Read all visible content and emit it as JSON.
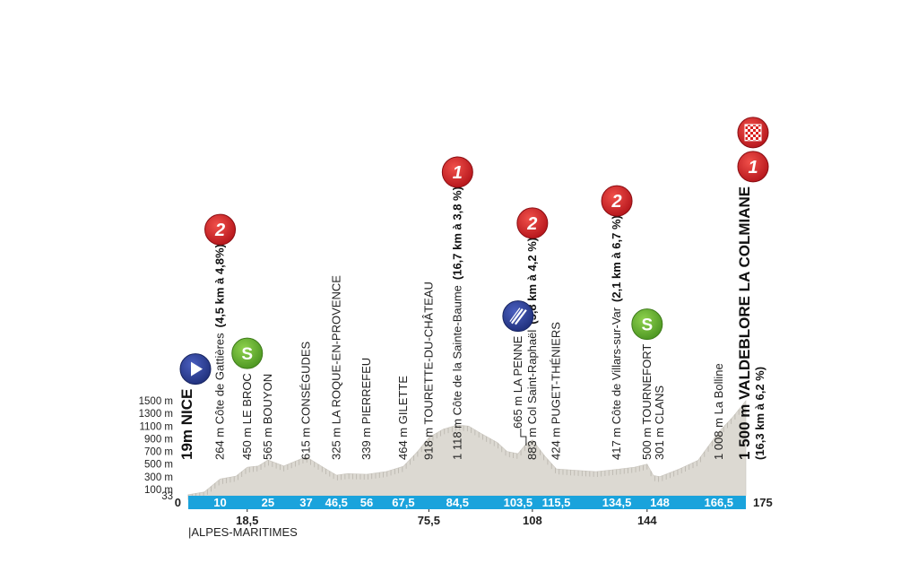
{
  "profile": {
    "total_km": 175,
    "max_alt": 1500,
    "altitude_axis": [
      "1500 m",
      "1300 m",
      "1100 m",
      "900 m",
      "700 m",
      "500 m",
      "300 m",
      "100 m",
      "33"
    ],
    "altitude_values": [
      1500,
      1300,
      1100,
      900,
      700,
      500,
      300,
      100,
      33
    ],
    "zero_label": "0",
    "end_label": "175",
    "department": "|ALPES-MARITIMES",
    "band_color": "#1aa3dc",
    "area_color": "#dcd9d2",
    "elevation": [
      [
        0,
        19
      ],
      [
        5,
        60
      ],
      [
        10,
        264
      ],
      [
        15,
        310
      ],
      [
        18.5,
        450
      ],
      [
        22,
        470
      ],
      [
        25,
        565
      ],
      [
        30,
        470
      ],
      [
        37,
        615
      ],
      [
        42,
        460
      ],
      [
        46.5,
        325
      ],
      [
        50,
        350
      ],
      [
        56,
        339
      ],
      [
        62,
        380
      ],
      [
        67.5,
        464
      ],
      [
        72,
        700
      ],
      [
        75.5,
        918
      ],
      [
        80,
        1050
      ],
      [
        84.5,
        1118
      ],
      [
        88,
        1100
      ],
      [
        92,
        980
      ],
      [
        97,
        840
      ],
      [
        100,
        700
      ],
      [
        103.5,
        665
      ],
      [
        106,
        820
      ],
      [
        108,
        883
      ],
      [
        112,
        620
      ],
      [
        115.5,
        424
      ],
      [
        122,
        400
      ],
      [
        128,
        380
      ],
      [
        134.5,
        417
      ],
      [
        140,
        450
      ],
      [
        144,
        500
      ],
      [
        146,
        320
      ],
      [
        148,
        301
      ],
      [
        154,
        420
      ],
      [
        160,
        560
      ],
      [
        166.5,
        1008
      ],
      [
        171,
        1250
      ],
      [
        175,
        1500
      ]
    ]
  },
  "km_ticks": [
    {
      "km": 10,
      "label": "10",
      "row": "band"
    },
    {
      "km": 25,
      "label": "25",
      "row": "band"
    },
    {
      "km": 37,
      "label": "37",
      "row": "band"
    },
    {
      "km": 46.5,
      "label": "46,5",
      "row": "band"
    },
    {
      "km": 56,
      "label": "56",
      "row": "band"
    },
    {
      "km": 67.5,
      "label": "67,5",
      "row": "band"
    },
    {
      "km": 84.5,
      "label": "84,5",
      "row": "band"
    },
    {
      "km": 103.5,
      "label": "103,5",
      "row": "band"
    },
    {
      "km": 115.5,
      "label": "115,5",
      "row": "band"
    },
    {
      "km": 134.5,
      "label": "134,5",
      "row": "band"
    },
    {
      "km": 148,
      "label": "148",
      "row": "band"
    },
    {
      "km": 166.5,
      "label": "166,5",
      "row": "band"
    },
    {
      "km": 18.5,
      "label": "18,5",
      "row": "below"
    },
    {
      "km": 75.5,
      "label": "75,5",
      "row": "below"
    },
    {
      "km": 108,
      "label": "108",
      "row": "below"
    },
    {
      "km": 144,
      "label": "144",
      "row": "below"
    }
  ],
  "waypoints": [
    {
      "km": 0,
      "alt": "19m",
      "name": "NICE",
      "big": true,
      "icon": "start"
    },
    {
      "km": 10,
      "alt": "264 m",
      "name": "Côte de Gattières",
      "climb": "(4,5 km à 4,8%)",
      "icon": "cat2"
    },
    {
      "km": 18.5,
      "alt": "450 m",
      "name": "LE BROC",
      "icon": "sprint"
    },
    {
      "km": 25,
      "alt": "565 m",
      "name": "BOUYON"
    },
    {
      "km": 37,
      "alt": "615 m",
      "name": "CONSÉGUDES"
    },
    {
      "km": 46.5,
      "alt": "325 m",
      "name": "LA ROQUE-EN-PROVENCE"
    },
    {
      "km": 56,
      "alt": "339 m",
      "name": "PIERREFEU"
    },
    {
      "km": 67.5,
      "alt": "464 m",
      "name": "GILETTE"
    },
    {
      "km": 75.5,
      "alt": "918 m",
      "name": "TOURETTE-DU-CHÂTEAU"
    },
    {
      "km": 84.5,
      "alt": "1 118 m",
      "name": "Côte de la Sainte-Baume",
      "climb": "(16,7 km à 3,8 %)",
      "icon": "cat1"
    },
    {
      "km": 103.5,
      "alt": "665 m",
      "name": "LA PENNE",
      "icon": "feed",
      "leader": true
    },
    {
      "km": 108,
      "alt": "883 m",
      "name": "Col Saint-Raphaël",
      "climb": "(5,8 km à 4,2 %)",
      "icon": "cat2"
    },
    {
      "km": 115.5,
      "alt": "424 m",
      "name": "PUGET-THÉNIERS"
    },
    {
      "km": 134.5,
      "alt": "417 m",
      "name": "Côte de Villars-sur-Var",
      "climb": "(2,1 km à 6,7 %)",
      "icon": "cat2"
    },
    {
      "km": 144,
      "alt": "500 m",
      "name": "TOURNEFORT",
      "icon": "sprint"
    },
    {
      "km": 148,
      "alt": "301 m",
      "name": "CLANS"
    },
    {
      "km": 166.5,
      "alt": "1 008 m",
      "name": "La Bolline"
    },
    {
      "km": 175,
      "alt": "1 500 m",
      "name": "VALDEBLORE LA COLMIANE",
      "climb": "(16,3 km à 6,2 %)",
      "big": true,
      "icon": "finish"
    }
  ],
  "icons": {
    "cat1": {
      "glyph": "1",
      "color": "#d9201e",
      "name": "category-1-climb-icon"
    },
    "cat2": {
      "glyph": "2",
      "color": "#d9201e",
      "name": "category-2-climb-icon"
    },
    "sprint": {
      "glyph": "S",
      "color": "#6ab42d",
      "name": "intermediate-sprint-icon"
    },
    "start": {
      "glyph": "",
      "color": "#2a3f96",
      "name": "start-arrow-icon"
    },
    "feed": {
      "glyph": "",
      "color": "#2a3f96",
      "name": "feed-zone-icon"
    },
    "finish": {
      "glyph": "",
      "color": "#d9201e",
      "name": "finish-flag-icon"
    }
  }
}
